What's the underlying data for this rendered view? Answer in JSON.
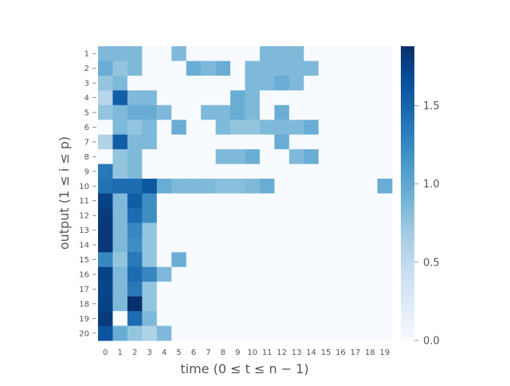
{
  "chart_data": {
    "type": "heatmap",
    "title": "",
    "xlabel": "time (0 ≤ t ≤ n − 1)",
    "ylabel": "output (1 ≤ i ≤ p)",
    "x_categories": [
      "0",
      "1",
      "2",
      "3",
      "4",
      "5",
      "6",
      "7",
      "8",
      "9",
      "10",
      "11",
      "12",
      "13",
      "14",
      "15",
      "16",
      "17",
      "18",
      "19"
    ],
    "y_categories": [
      "1",
      "2",
      "3",
      "4",
      "5",
      "6",
      "7",
      "8",
      "9",
      "10",
      "11",
      "12",
      "13",
      "14",
      "15",
      "16",
      "17",
      "18",
      "19",
      "20"
    ],
    "colorbar": {
      "min": 0.0,
      "max": 1.88,
      "ticks": [
        0.0,
        0.5,
        1.0,
        1.5
      ],
      "tick_labels": [
        "0.0",
        "0.5",
        "1.0",
        "1.5"
      ],
      "colormap": "Blues"
    },
    "values": [
      [
        0.85,
        0.85,
        0.85,
        0,
        0,
        0.85,
        0,
        0,
        0,
        0,
        0,
        0.85,
        0.85,
        0.85,
        0,
        0,
        0,
        0,
        0,
        0
      ],
      [
        0.95,
        0.75,
        0.85,
        0,
        0,
        0,
        0.95,
        0.85,
        0.95,
        0,
        0.85,
        0.85,
        0.85,
        0.85,
        0.85,
        0,
        0,
        0,
        0,
        0
      ],
      [
        0.75,
        0.85,
        0,
        0,
        0,
        0,
        0,
        0,
        0,
        0,
        0.85,
        0.85,
        0.95,
        0.85,
        0,
        0,
        0,
        0,
        0,
        0
      ],
      [
        0.55,
        1.55,
        0.85,
        0.85,
        0,
        0,
        0,
        0,
        0,
        0.95,
        0.85,
        0,
        0,
        0,
        0,
        0,
        0,
        0,
        0,
        0
      ],
      [
        0.75,
        0.85,
        0.95,
        0.95,
        0.85,
        0,
        0,
        0.85,
        0.85,
        0.95,
        0.85,
        0,
        0.95,
        0,
        0,
        0,
        0,
        0,
        0,
        0
      ],
      [
        0,
        0.85,
        0.75,
        0.85,
        0,
        0.95,
        0,
        0,
        0.85,
        0.75,
        0.75,
        0.85,
        0.85,
        0.85,
        0.95,
        0,
        0,
        0,
        0,
        0
      ],
      [
        0.6,
        1.55,
        0.85,
        0.85,
        0,
        0,
        0,
        0,
        0,
        0,
        0,
        0,
        0.95,
        0,
        0,
        0,
        0,
        0,
        0,
        0
      ],
      [
        0,
        0.75,
        0.85,
        0,
        0,
        0,
        0,
        0,
        0.85,
        0.85,
        0.95,
        0,
        0,
        0.85,
        0.95,
        0,
        0,
        0,
        0,
        0
      ],
      [
        1.35,
        0.75,
        0.85,
        0,
        0,
        0,
        0,
        0,
        0,
        0,
        0,
        0,
        0,
        0,
        0,
        0,
        0,
        0,
        0,
        0
      ],
      [
        1.4,
        1.45,
        1.45,
        1.6,
        0.95,
        0.85,
        0.85,
        0.85,
        0.8,
        0.8,
        0.85,
        0.95,
        0,
        0,
        0,
        0,
        0,
        0,
        0,
        0.95
      ],
      [
        1.75,
        0.85,
        1.55,
        1.2,
        0,
        0,
        0,
        0,
        0,
        0,
        0,
        0,
        0,
        0,
        0,
        0,
        0,
        0,
        0,
        0
      ],
      [
        1.8,
        0.85,
        1.45,
        1.2,
        0,
        0,
        0,
        0,
        0,
        0,
        0,
        0,
        0,
        0,
        0,
        0,
        0,
        0,
        0,
        0
      ],
      [
        1.82,
        0.85,
        1.25,
        0.75,
        0,
        0,
        0,
        0,
        0,
        0,
        0,
        0,
        0,
        0,
        0,
        0,
        0,
        0,
        0,
        0
      ],
      [
        1.82,
        0.85,
        1.2,
        0.75,
        0,
        0,
        0,
        0,
        0,
        0,
        0,
        0,
        0,
        0,
        0,
        0,
        0,
        0,
        0,
        0
      ],
      [
        1.25,
        0.75,
        1.35,
        0.75,
        0,
        0.95,
        0,
        0,
        0,
        0,
        0,
        0,
        0,
        0,
        0,
        0,
        0,
        0,
        0,
        0
      ],
      [
        1.75,
        0.85,
        1.45,
        1.25,
        0.85,
        0,
        0,
        0,
        0,
        0,
        0,
        0,
        0,
        0,
        0,
        0,
        0,
        0,
        0,
        0
      ],
      [
        1.72,
        0.85,
        1.35,
        0.75,
        0,
        0,
        0,
        0,
        0,
        0,
        0,
        0,
        0,
        0,
        0,
        0,
        0,
        0,
        0,
        0
      ],
      [
        1.75,
        0.85,
        1.88,
        0.75,
        0,
        0,
        0,
        0,
        0,
        0,
        0,
        0,
        0,
        0,
        0,
        0,
        0,
        0,
        0,
        0
      ],
      [
        1.8,
        0,
        1.45,
        0.85,
        0,
        0,
        0,
        0,
        0,
        0,
        0,
        0,
        0,
        0,
        0,
        0,
        0,
        0,
        0,
        0
      ],
      [
        1.62,
        0.95,
        0.75,
        0.6,
        0.85,
        0,
        0,
        0,
        0,
        0,
        0,
        0,
        0,
        0,
        0,
        0,
        0,
        0,
        0,
        0
      ]
    ]
  }
}
